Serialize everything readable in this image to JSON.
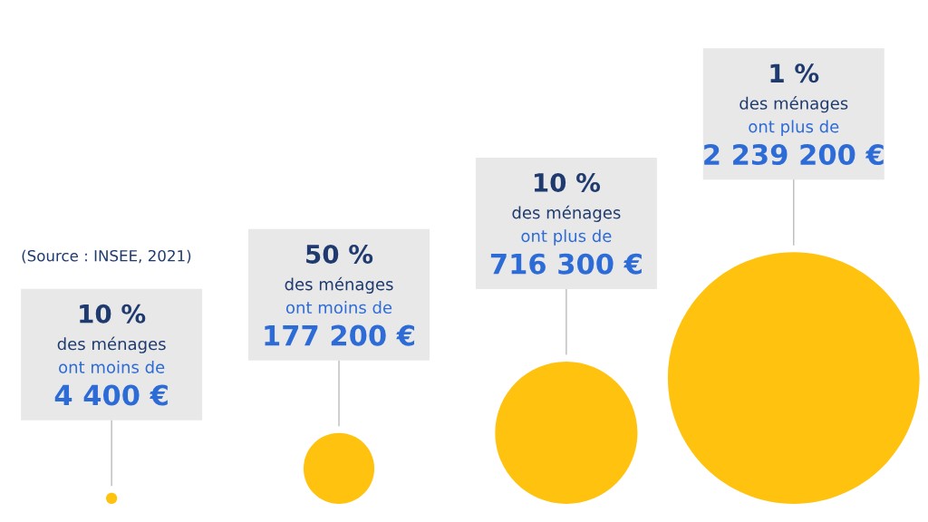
{
  "chart_data": {
    "type": "other",
    "categories": [
      "10 %\ndes ménages\nont moins de",
      "50 %\ndes ménages\nont moins de",
      "10 %\ndes ménages\nont plus de",
      "1 %\ndes ménages\nont plus de"
    ],
    "series": [
      {
        "color": "#ffc20e",
        "values": [
          4400,
          177200,
          716300,
          2239200
        ],
        "value_labels": [
          "4 400 €",
          "177 200 €",
          "716 300 €",
          "2 239 200 €"
        ]
      }
    ],
    "annotations": [
      "(Source : INSEE, 2021)"
    ]
  }
}
